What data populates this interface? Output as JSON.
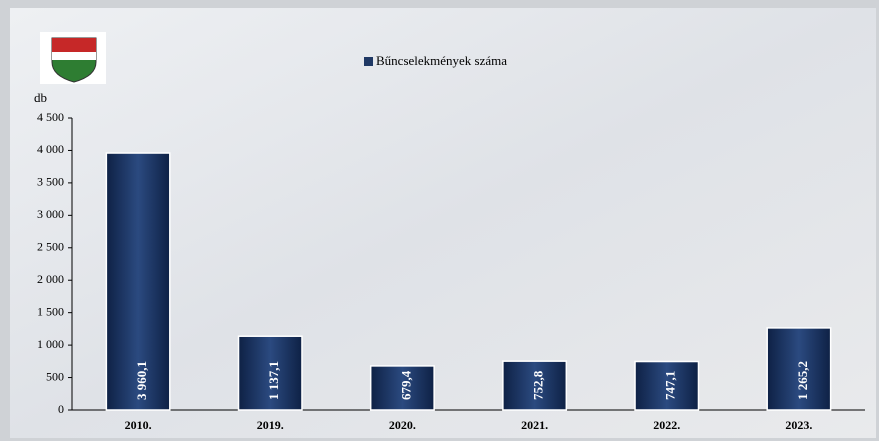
{
  "chart_data": {
    "type": "bar",
    "y_axis_label": "db",
    "categories": [
      "2010.",
      "2019.",
      "2020.",
      "2021.",
      "2022.",
      "2023."
    ],
    "series": [
      {
        "name": "Bűncselekmények száma",
        "color": "#1f3864",
        "values": [
          3960.1,
          1137.1,
          679.4,
          752.8,
          747.1,
          1265.2
        ],
        "value_labels": [
          "3 960,1",
          "1 137,1",
          "679,4",
          "752,8",
          "747,1",
          "1 265,2"
        ]
      }
    ],
    "ylim": [
      0,
      4500
    ],
    "yticks": [
      0,
      500,
      {
        "value": 1000,
        "label": "1 000"
      },
      {
        "value": 1500,
        "label": "1 500"
      },
      {
        "value": 2000,
        "label": "2 000"
      },
      {
        "value": 2500,
        "label": "2 500"
      },
      {
        "value": 3000,
        "label": "3 000"
      },
      {
        "value": 3500,
        "label": "3 500"
      },
      {
        "value": 4000,
        "label": "4 000"
      },
      {
        "value": 4500,
        "label": "4 500"
      }
    ],
    "grid": false
  }
}
